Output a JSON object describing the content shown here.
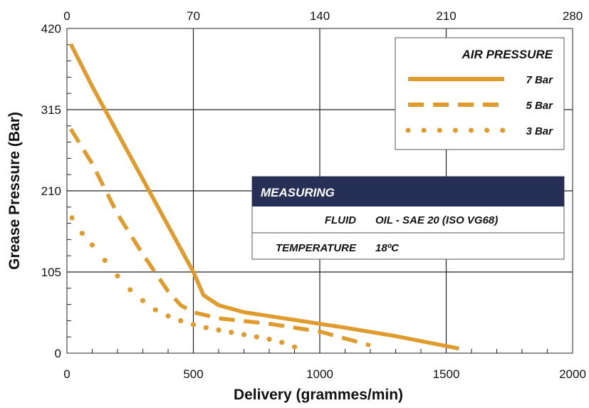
{
  "chart_data": {
    "type": "line",
    "xlabel": "Delivery (grammes/min)",
    "ylabel": "Grease Pressure (Bar)",
    "xlim": [
      0,
      2000
    ],
    "ylim": [
      0,
      420
    ],
    "x_ticks": [
      0,
      500,
      1000,
      1500,
      2000
    ],
    "y_ticks": [
      0,
      105,
      210,
      315,
      420
    ],
    "secondary_x_axis": {
      "position": "top",
      "ticks": [
        0,
        70,
        140,
        210,
        280
      ],
      "lim": [
        0,
        280
      ]
    },
    "grid": true,
    "colors": {
      "series": "#e09b2d",
      "header_bg": "#262f56"
    },
    "legend": {
      "title": "AIR PRESSURE",
      "placement": "top-right",
      "entries": [
        "7 Bar",
        "5 Bar",
        "3 Bar"
      ]
    },
    "series": [
      {
        "name": "7 Bar",
        "style": "solid",
        "x": [
          15,
          100,
          200,
          300,
          400,
          500,
          540,
          600,
          700,
          900,
          1100,
          1300,
          1550
        ],
        "y": [
          400,
          345,
          285,
          225,
          165,
          105,
          75,
          62,
          53,
          43,
          33,
          22,
          6
        ]
      },
      {
        "name": "5 Bar",
        "style": "dashed",
        "x": [
          15,
          100,
          200,
          300,
          400,
          450,
          500,
          600,
          800,
          1000,
          1200
        ],
        "y": [
          290,
          245,
          180,
          128,
          80,
          62,
          53,
          45,
          38,
          28,
          10
        ]
      },
      {
        "name": "3 Bar",
        "style": "dotted",
        "x": [
          20,
          60,
          100,
          150,
          200,
          250,
          300,
          350,
          400,
          450,
          500,
          550,
          600,
          650,
          700,
          750,
          800,
          850,
          900
        ],
        "y": [
          175,
          155,
          140,
          120,
          100,
          82,
          68,
          56,
          48,
          42,
          37,
          33,
          30,
          27,
          24,
          21,
          18,
          14,
          8
        ]
      }
    ],
    "measuring_table": {
      "title": "MEASURING",
      "rows": [
        {
          "label": "FLUID",
          "value": "OIL - SAE 20 (ISO VG68)"
        },
        {
          "label": "TEMPERATURE",
          "value": "18ºC"
        }
      ]
    }
  }
}
